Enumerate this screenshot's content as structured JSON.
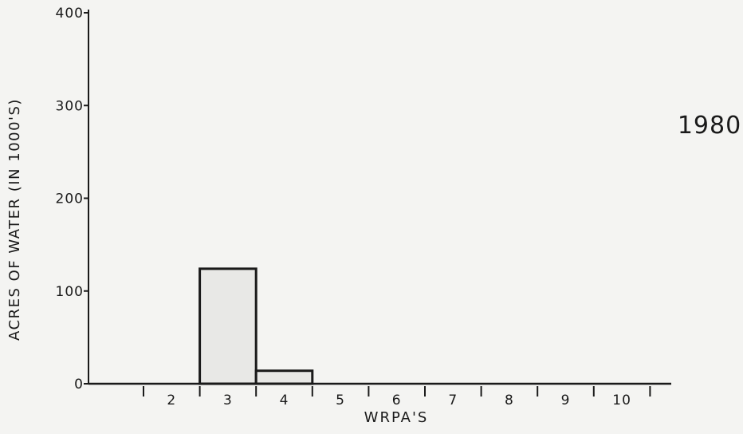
{
  "chart_data": {
    "type": "bar",
    "title": "1980",
    "xlabel": "WRPA'S",
    "ylabel": "ACRES OF WATER (IN 1000'S)",
    "categories": [
      "2",
      "3",
      "4",
      "5",
      "6",
      "7",
      "8",
      "9",
      "10"
    ],
    "values": [
      0,
      124,
      14,
      0,
      0,
      0,
      0,
      0,
      0
    ],
    "ylim": [
      0,
      400
    ],
    "yticks": [
      0,
      100,
      200,
      300,
      400
    ],
    "grid": false,
    "bar_color": "#e8e8e6",
    "ink_color": "#1a1a1a"
  }
}
